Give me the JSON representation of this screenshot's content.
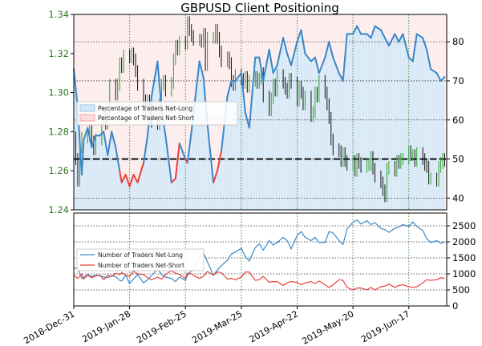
{
  "title": "GBPUSD Client Positioning",
  "colors": {
    "net_long": "#3a87c8",
    "net_short": "#e8403a",
    "long_fill": "#d6e8f7",
    "short_fill": "#fbdcdc",
    "price_up": "#2ca02c",
    "price_down": "#111111",
    "axis_left": "#2a7a1e",
    "grid": "#2a8a2a",
    "reference": "#000000"
  },
  "chart_data": [
    {
      "type": "line",
      "name": "top",
      "x_tick_labels": [
        "2018-Dec-31",
        "2019-Jan-28",
        "2019-Feb-25",
        "2019-Mar-25",
        "2019-Apr-22",
        "2019-May-20",
        "2019-Jun-17"
      ],
      "x_tick_days": [
        0,
        28,
        56,
        84,
        112,
        140,
        168
      ],
      "x_range_days": [
        0,
        187
      ],
      "left_axis": {
        "ylim": [
          1.24,
          1.34
        ],
        "ticks": [
          "1.24",
          "1.26",
          "1.28",
          "1.30",
          "1.32",
          "1.34"
        ]
      },
      "right_axis": {
        "ylim": [
          37,
          87
        ],
        "ticks": [
          "40",
          "50",
          "60",
          "70",
          "80"
        ]
      },
      "reference_percent": 50,
      "legend": {
        "position": "left",
        "entries": [
          "Percentage of Traders Net-Long",
          "Percentage of Traders Net-Short"
        ]
      },
      "price_days": [
        0,
        1,
        2,
        3,
        4,
        7,
        8,
        9,
        10,
        11,
        14,
        15,
        16,
        17,
        18,
        21,
        22,
        23,
        24,
        25,
        28,
        29,
        30,
        31,
        32,
        35,
        36,
        37,
        38,
        39,
        42,
        43,
        44,
        45,
        46,
        49,
        50,
        51,
        52,
        53,
        56,
        57,
        58,
        59,
        60,
        63,
        64,
        65,
        66,
        67,
        70,
        71,
        72,
        73,
        74,
        77,
        78,
        79,
        80,
        81,
        84,
        85,
        86,
        87,
        88,
        91,
        92,
        93,
        94,
        95,
        98,
        99,
        100,
        101,
        102,
        105,
        106,
        107,
        108,
        109,
        112,
        113,
        114,
        115,
        116,
        119,
        120,
        121,
        122,
        123,
        126,
        127,
        128,
        129,
        130,
        133,
        134,
        135,
        136,
        137,
        140,
        141,
        142,
        143,
        144,
        147,
        148,
        149,
        150,
        151,
        154,
        155,
        156,
        157,
        158,
        161,
        162,
        163,
        164,
        165,
        168,
        169,
        170,
        171,
        172,
        175,
        176,
        177,
        178,
        179,
        182,
        183,
        184,
        185,
        186
      ],
      "price_close": [
        1.277,
        1.266,
        1.255,
        1.272,
        1.277,
        1.278,
        1.281,
        1.275,
        1.271,
        1.276,
        1.286,
        1.289,
        1.284,
        1.289,
        1.304,
        1.299,
        1.304,
        1.315,
        1.313,
        1.319,
        1.318,
        1.32,
        1.317,
        1.311,
        1.304,
        1.296,
        1.29,
        1.296,
        1.293,
        1.285,
        1.284,
        1.294,
        1.304,
        1.306,
        1.301,
        1.305,
        1.317,
        1.324,
        1.322,
        1.326,
        1.325,
        1.336,
        1.332,
        1.329,
        1.327,
        1.327,
        1.326,
        1.33,
        1.314,
        1.328,
        1.328,
        1.332,
        1.328,
        1.321,
        1.316,
        1.318,
        1.315,
        1.306,
        1.304,
        1.309,
        1.307,
        1.305,
        1.308,
        1.303,
        1.306,
        1.308,
        1.305,
        1.307,
        1.31,
        1.298,
        1.291,
        1.297,
        1.304,
        1.301,
        1.309,
        1.305,
        1.302,
        1.3,
        1.307,
        1.305,
        1.296,
        1.303,
        1.3,
        1.294,
        1.298,
        1.288,
        1.29,
        1.3,
        1.298,
        1.306,
        1.3,
        1.294,
        1.287,
        1.276,
        1.271,
        1.27,
        1.265,
        1.269,
        1.265,
        1.263,
        1.265,
        1.26,
        1.266,
        1.264,
        1.262,
        1.263,
        1.263,
        1.267,
        1.261,
        1.257,
        1.254,
        1.25,
        1.247,
        1.261,
        1.262,
        1.26,
        1.265,
        1.264,
        1.266,
        1.266,
        1.27,
        1.268,
        1.268,
        1.265,
        1.269,
        1.266,
        1.263,
        1.262,
        1.256,
        1.256,
        1.255,
        1.262,
        1.264,
        1.266,
        1.265
      ],
      "percent_long_days": [
        0,
        2,
        4,
        5,
        7,
        9,
        11,
        13,
        15,
        17,
        19,
        21,
        23,
        24,
        26,
        28,
        30,
        32,
        35,
        37,
        39,
        42,
        44,
        46,
        49,
        51,
        53,
        56,
        57,
        59,
        61,
        63,
        65,
        67,
        70,
        72,
        74,
        77,
        79,
        81,
        84,
        86,
        88,
        91,
        93,
        95,
        98,
        100,
        102,
        105,
        107,
        109,
        112,
        114,
        116,
        119,
        121,
        123,
        126,
        128,
        130,
        133,
        135,
        137,
        140,
        142,
        144,
        147,
        149,
        151,
        154,
        156,
        158,
        161,
        163,
        165,
        168,
        170,
        172,
        175,
        177,
        179,
        182,
        184,
        186
      ],
      "percent_long": [
        73,
        63,
        46,
        55,
        58,
        53,
        56,
        56,
        57,
        51,
        57,
        53,
        47,
        44,
        46,
        43,
        46,
        44,
        49,
        56,
        66,
        75,
        63,
        56,
        44,
        45,
        54,
        50,
        49,
        57,
        66,
        75,
        71,
        59,
        44,
        47,
        52,
        66,
        70,
        70,
        72,
        62,
        58,
        76,
        76,
        70,
        78,
        72,
        74,
        81,
        77,
        74,
        80,
        83,
        77,
        75,
        76,
        72,
        76,
        80,
        76,
        72,
        70,
        82,
        82,
        84,
        82,
        82,
        81,
        84,
        83,
        81,
        79,
        82,
        80,
        82,
        76,
        75,
        82,
        81,
        78,
        73,
        72,
        70,
        71
      ]
    },
    {
      "type": "line",
      "name": "bottom",
      "ylim": [
        0,
        2900
      ],
      "y_ticks": [
        "0",
        "500",
        "1000",
        "1500",
        "2000",
        "2500"
      ],
      "legend": {
        "position": "left",
        "entries": [
          "Number of Traders Net-Long",
          "Number of Traders Net-Short"
        ]
      },
      "days": [
        0,
        2,
        4,
        5,
        7,
        9,
        11,
        13,
        15,
        17,
        19,
        21,
        23,
        24,
        26,
        28,
        30,
        32,
        35,
        37,
        39,
        42,
        44,
        46,
        49,
        51,
        53,
        56,
        57,
        59,
        61,
        63,
        65,
        67,
        70,
        72,
        74,
        77,
        79,
        81,
        84,
        86,
        88,
        91,
        93,
        95,
        98,
        100,
        102,
        105,
        107,
        109,
        112,
        114,
        116,
        119,
        121,
        123,
        126,
        128,
        130,
        133,
        135,
        137,
        140,
        142,
        144,
        147,
        149,
        151,
        154,
        156,
        158,
        161,
        163,
        165,
        168,
        170,
        172,
        175,
        177,
        179,
        182,
        184,
        186
      ],
      "net_long": [
        1180,
        1180,
        860,
        900,
        980,
        920,
        960,
        960,
        900,
        880,
        940,
        920,
        800,
        780,
        960,
        700,
        840,
        980,
        720,
        820,
        940,
        1160,
        980,
        900,
        860,
        760,
        900,
        800,
        960,
        1100,
        1240,
        1560,
        1660,
        1380,
        960,
        1120,
        1260,
        1420,
        1620,
        1680,
        1800,
        1540,
        1400,
        1820,
        1940,
        1740,
        2040,
        1900,
        1980,
        2140,
        2040,
        1780,
        2200,
        2320,
        2140,
        2040,
        2140,
        1980,
        1980,
        2320,
        2280,
        2040,
        1920,
        2400,
        2620,
        2680,
        2560,
        2660,
        2540,
        2600,
        2420,
        2380,
        2300,
        2420,
        2460,
        2540,
        2480,
        2620,
        2480,
        2360,
        2100,
        1980,
        2040,
        1960,
        2000
      ],
      "net_short": [
        960,
        860,
        1000,
        840,
        960,
        880,
        940,
        960,
        820,
        960,
        920,
        1020,
        980,
        1040,
        960,
        920,
        1080,
        1000,
        980,
        880,
        820,
        900,
        840,
        980,
        1100,
        1020,
        980,
        860,
        1020,
        1000,
        920,
        860,
        920,
        1080,
        960,
        1060,
        1040,
        840,
        860,
        820,
        900,
        1060,
        1060,
        800,
        820,
        920,
        740,
        760,
        760,
        640,
        720,
        760,
        740,
        660,
        720,
        760,
        700,
        780,
        660,
        580,
        660,
        820,
        800,
        580,
        500,
        560,
        560,
        500,
        580,
        500,
        600,
        620,
        680,
        580,
        640,
        660,
        600,
        580,
        600,
        720,
        820,
        800,
        820,
        880,
        860
      ]
    }
  ]
}
